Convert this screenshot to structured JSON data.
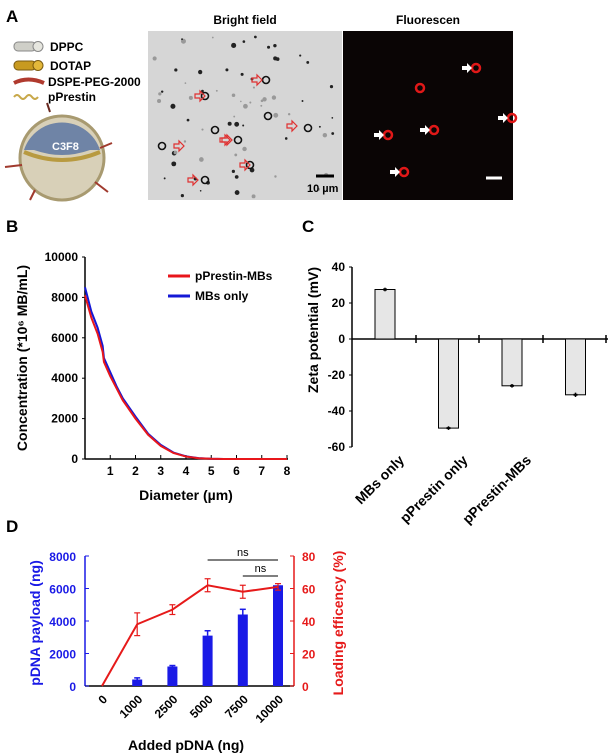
{
  "panel_labels": [
    "A",
    "B",
    "C",
    "D"
  ],
  "panel_a": {
    "legend": [
      "DPPC",
      "DOTAP",
      "DSPE-PEG-2000",
      "pPrestin"
    ],
    "core_label": "C3F8",
    "bright_field_title": "Bright field",
    "fluorescence_title": "Fluorescen",
    "scale_bar_label": "10 µm",
    "colors": {
      "arrow_bright": "#e03030",
      "arrow_fluor": "#ffffff",
      "fluor_signal": "#e01818"
    }
  },
  "chart_data": [
    {
      "panel": "B",
      "type": "line",
      "xlabel": "Diameter (µm)",
      "ylabel": "Concentration (*10⁶ MB/mL)",
      "xlim": [
        0,
        8
      ],
      "ylim": [
        0,
        10000
      ],
      "xticks": [
        "1",
        "2",
        "3",
        "4",
        "5",
        "6",
        "7",
        "8"
      ],
      "yticks": [
        "0",
        "2000",
        "4000",
        "6000",
        "8000",
        "10000"
      ],
      "legend_position": "top-right",
      "series": [
        {
          "name": "pPrestin-MBs",
          "color": "#e8161b",
          "x": [
            0,
            0.25,
            0.5,
            0.7,
            0.75,
            1,
            1.25,
            1.5,
            2,
            2.5,
            3,
            3.5,
            4,
            4.5,
            5,
            5.5,
            6,
            8
          ],
          "y": [
            8100,
            7000,
            6200,
            5300,
            4800,
            4100,
            3500,
            2900,
            2000,
            1200,
            650,
            300,
            120,
            40,
            10,
            0,
            0,
            0
          ]
        },
        {
          "name": "MBs only",
          "color": "#1418d6",
          "x": [
            0,
            0.25,
            0.5,
            0.7,
            0.75,
            1,
            1.25,
            1.5,
            2,
            2.5,
            3,
            3.5,
            4,
            4.5,
            5,
            5.5,
            6,
            8
          ],
          "y": [
            8500,
            7300,
            6500,
            5600,
            5000,
            4300,
            3600,
            3000,
            2100,
            1250,
            700,
            320,
            130,
            45,
            12,
            0,
            0,
            0
          ]
        }
      ]
    },
    {
      "panel": "C",
      "type": "bar",
      "ylabel": "Zeta potential (mV)",
      "ylim": [
        -60,
        40
      ],
      "yticks": [
        "40",
        "20",
        "0",
        "-20",
        "-40",
        "-60"
      ],
      "categories": [
        "MBs only",
        "pPrestin only",
        "pPrestin-MBs",
        ""
      ],
      "values": [
        27.5,
        -49.5,
        -26,
        -31
      ],
      "errors": [
        1,
        1,
        1,
        1.2
      ],
      "bar_color": "#e6e6e6"
    },
    {
      "panel": "D",
      "type": "bar+line",
      "xlabel": "Added pDNA (ng)",
      "categories": [
        "0",
        "1000",
        "2500",
        "5000",
        "7500",
        "10000"
      ],
      "left_axis": {
        "label": "pDNA payload (ng)",
        "ylim": [
          0,
          8000
        ],
        "yticks": [
          "0",
          "2000",
          "4000",
          "6000",
          "8000"
        ],
        "color": "#1a1ae6"
      },
      "right_axis": {
        "label": "Loading efficency (%)",
        "ylim": [
          0,
          80
        ],
        "yticks": [
          "0",
          "20",
          "40",
          "60",
          "80"
        ],
        "color": "#e61a1a"
      },
      "bars": {
        "values": [
          0,
          400,
          1200,
          3100,
          4400,
          6200
        ],
        "errors": [
          0,
          100,
          60,
          300,
          320,
          0
        ]
      },
      "line": {
        "values": [
          0,
          38,
          47,
          62,
          58,
          61
        ],
        "errors": [
          0,
          7,
          3,
          4,
          4,
          2
        ]
      },
      "annotations": [
        {
          "text": "ns",
          "from": "5000",
          "to": "10000"
        },
        {
          "text": "ns",
          "from": "7500",
          "to": "10000"
        }
      ]
    }
  ]
}
